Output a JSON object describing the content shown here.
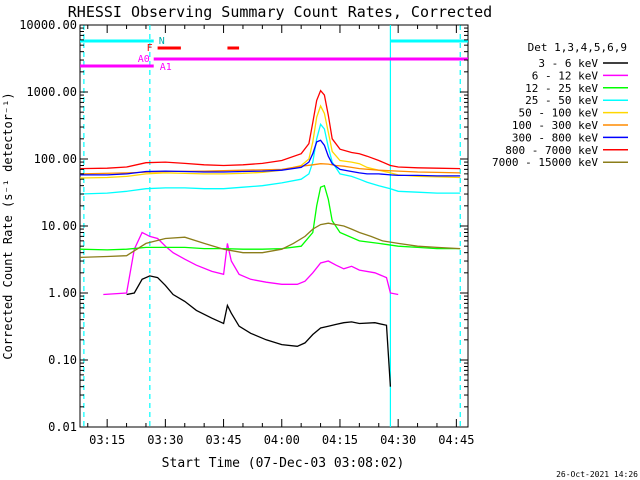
{
  "chart_data": {
    "type": "line",
    "title": "RHESSI Observing Summary Count Rates, Corrected",
    "xlabel": "Start Time (07-Dec-03 03:08:02)",
    "ylabel": "Corrected Count Rate (s⁻¹ detector⁻¹)",
    "yscale": "log",
    "ylim": [
      0.01,
      10000
    ],
    "xlim": [
      "03:08",
      "04:48"
    ],
    "y_ticks": [
      "10000.00",
      "1000.00",
      "100.00",
      "10.00",
      "1.00",
      "0.10",
      "0.01"
    ],
    "x_ticks": [
      "03:15",
      "03:30",
      "03:45",
      "04:00",
      "04:15",
      "04:30",
      "04:45"
    ],
    "timestamp": "26-Oct-2021 14:26",
    "legend_title": "Det 1,3,4,5,6,9",
    "state_bars": {
      "N_label": "N",
      "N_intervals": [
        [
          "03:08",
          "03:27"
        ],
        [
          "04:28",
          "04:48"
        ]
      ],
      "F_label": "F",
      "F_intervals": [
        [
          "03:28",
          "03:34"
        ],
        [
          "03:46",
          "03:49"
        ]
      ],
      "A0_label": "A0",
      "A0_interval": [
        "03:08",
        "03:27"
      ],
      "A1_label": "A1",
      "A1_interval": [
        "03:27",
        "04:48"
      ]
    },
    "night_markers": [
      "03:09",
      "03:26",
      "04:28",
      "04:46"
    ],
    "series": [
      {
        "name": "3 - 6 keV",
        "color": "#000000",
        "x": [
          "03:20",
          "03:22",
          "03:24",
          "03:26",
          "03:28",
          "03:30",
          "03:32",
          "03:35",
          "03:38",
          "03:42",
          "03:45",
          "03:46",
          "03:47",
          "03:49",
          "03:52",
          "03:56",
          "04:00",
          "04:04",
          "04:06",
          "04:08",
          "04:10",
          "04:12",
          "04:14",
          "04:16",
          "04:18",
          "04:20",
          "04:24",
          "04:27",
          "04:28"
        ],
        "values": [
          0.95,
          1.0,
          1.6,
          1.8,
          1.7,
          1.3,
          0.95,
          0.75,
          0.55,
          0.42,
          0.35,
          0.65,
          0.5,
          0.32,
          0.25,
          0.2,
          0.17,
          0.16,
          0.18,
          0.24,
          0.3,
          0.32,
          0.34,
          0.36,
          0.37,
          0.35,
          0.36,
          0.33,
          0.04
        ]
      },
      {
        "name": "6 - 12 keV",
        "color": "#ff00ff",
        "x": [
          "03:14",
          "03:20",
          "03:22",
          "03:24",
          "03:25",
          "03:26",
          "03:28",
          "03:30",
          "03:32",
          "03:35",
          "03:38",
          "03:42",
          "03:45",
          "03:46",
          "03:47",
          "03:49",
          "03:52",
          "03:56",
          "04:00",
          "04:04",
          "04:06",
          "04:08",
          "04:10",
          "04:12",
          "04:14",
          "04:16",
          "04:18",
          "04:20",
          "04:24",
          "04:27",
          "04:28",
          "04:30"
        ],
        "values": [
          0.95,
          1.0,
          4.5,
          8.0,
          7.5,
          7.0,
          6.5,
          5.0,
          4.0,
          3.2,
          2.6,
          2.1,
          1.9,
          5.5,
          3.0,
          1.9,
          1.6,
          1.45,
          1.35,
          1.35,
          1.5,
          2.0,
          2.8,
          3.0,
          2.6,
          2.3,
          2.5,
          2.2,
          2.0,
          1.7,
          1.0,
          0.95
        ]
      },
      {
        "name": "12 - 25 keV",
        "color": "#00ff00",
        "x": [
          "03:08",
          "03:15",
          "03:20",
          "03:25",
          "03:30",
          "03:35",
          "03:40",
          "03:45",
          "03:50",
          "03:55",
          "04:00",
          "04:05",
          "04:08",
          "04:09",
          "04:10",
          "04:11",
          "04:12",
          "04:13",
          "04:15",
          "04:20",
          "04:25",
          "04:30",
          "04:35",
          "04:40",
          "04:46"
        ],
        "values": [
          4.5,
          4.4,
          4.5,
          4.8,
          4.8,
          4.8,
          4.6,
          4.6,
          4.5,
          4.5,
          4.6,
          5.0,
          8.0,
          20,
          38,
          40,
          25,
          12,
          8,
          6,
          5.5,
          5.0,
          4.8,
          4.6,
          4.6
        ]
      },
      {
        "name": "25 - 50 keV",
        "color": "#00ffff",
        "x": [
          "03:08",
          "03:15",
          "03:20",
          "03:25",
          "03:30",
          "03:35",
          "03:40",
          "03:45",
          "03:50",
          "03:55",
          "04:00",
          "04:05",
          "04:07",
          "04:08",
          "04:09",
          "04:10",
          "04:11",
          "04:12",
          "04:13",
          "04:15",
          "04:18",
          "04:20",
          "04:22",
          "04:25",
          "04:28",
          "04:30",
          "04:35",
          "04:40",
          "04:46"
        ],
        "values": [
          30,
          31,
          33,
          36,
          37,
          37,
          36,
          36,
          38,
          40,
          44,
          50,
          60,
          90,
          200,
          330,
          280,
          150,
          90,
          60,
          55,
          50,
          45,
          40,
          36,
          33,
          32,
          31,
          31
        ]
      },
      {
        "name": "50 - 100 keV",
        "color": "#ffd700",
        "x": [
          "03:08",
          "03:15",
          "03:20",
          "03:25",
          "03:30",
          "03:35",
          "03:40",
          "03:45",
          "03:50",
          "03:55",
          "04:00",
          "04:05",
          "04:07",
          "04:08",
          "04:09",
          "04:10",
          "04:11",
          "04:12",
          "04:13",
          "04:15",
          "04:18",
          "04:20",
          "04:22",
          "04:25",
          "04:28",
          "04:30",
          "04:35",
          "04:40",
          "04:46"
        ],
        "values": [
          52,
          53,
          55,
          60,
          62,
          61,
          60,
          60,
          61,
          63,
          68,
          80,
          100,
          180,
          420,
          620,
          480,
          250,
          130,
          95,
          90,
          85,
          75,
          68,
          62,
          58,
          55,
          54,
          53
        ]
      },
      {
        "name": "100 - 300 keV",
        "color": "#ff8c00",
        "x": [
          "03:08",
          "03:20",
          "03:30",
          "03:40",
          "03:50",
          "04:00",
          "04:05",
          "04:08",
          "04:10",
          "04:12",
          "04:14",
          "04:16",
          "04:18",
          "04:20",
          "04:25",
          "04:30",
          "04:35",
          "04:40",
          "04:46"
        ],
        "values": [
          60,
          62,
          65,
          66,
          68,
          70,
          78,
          82,
          85,
          84,
          80,
          78,
          75,
          72,
          68,
          66,
          64,
          63,
          62
        ]
      },
      {
        "name": "300 - 800 keV",
        "color": "#0000ff",
        "x": [
          "03:08",
          "03:15",
          "03:20",
          "03:25",
          "03:30",
          "03:35",
          "03:40",
          "03:45",
          "03:50",
          "03:55",
          "04:00",
          "04:05",
          "04:07",
          "04:08",
          "04:09",
          "04:10",
          "04:11",
          "04:12",
          "04:13",
          "04:15",
          "04:18",
          "04:20",
          "04:22",
          "04:25",
          "04:28",
          "04:30",
          "04:35",
          "04:40",
          "04:46"
        ],
        "values": [
          58,
          58,
          60,
          65,
          66,
          65,
          64,
          64,
          65,
          66,
          68,
          75,
          90,
          120,
          180,
          190,
          160,
          110,
          85,
          70,
          65,
          62,
          60,
          60,
          58,
          57,
          57,
          56,
          56
        ]
      },
      {
        "name": "800 - 7000 keV",
        "color": "#ff0000",
        "x": [
          "03:08",
          "03:15",
          "03:20",
          "03:25",
          "03:30",
          "03:35",
          "03:40",
          "03:45",
          "03:50",
          "03:55",
          "04:00",
          "04:05",
          "04:07",
          "04:08",
          "04:09",
          "04:10",
          "04:11",
          "04:12",
          "04:13",
          "04:15",
          "04:18",
          "04:20",
          "04:22",
          "04:25",
          "04:28",
          "04:30",
          "04:35",
          "04:40",
          "04:46"
        ],
        "values": [
          72,
          73,
          76,
          88,
          90,
          86,
          82,
          80,
          82,
          86,
          95,
          120,
          170,
          350,
          750,
          1050,
          900,
          450,
          200,
          140,
          125,
          120,
          110,
          95,
          80,
          76,
          74,
          73,
          72
        ]
      },
      {
        "name": "7000 - 15000 keV",
        "color": "#8b7d1a",
        "x": [
          "03:08",
          "03:15",
          "03:20",
          "03:25",
          "03:30",
          "03:35",
          "03:40",
          "03:45",
          "03:50",
          "03:55",
          "04:00",
          "04:03",
          "04:06",
          "04:08",
          "04:10",
          "04:12",
          "04:14",
          "04:16",
          "04:18",
          "04:20",
          "04:23",
          "04:26",
          "04:30",
          "04:35",
          "04:40",
          "04:46"
        ],
        "values": [
          3.4,
          3.5,
          3.6,
          5.5,
          6.5,
          6.8,
          5.5,
          4.5,
          4.0,
          4.0,
          4.5,
          5.5,
          7.0,
          9.0,
          10.5,
          11.0,
          10.5,
          10.0,
          9.0,
          8.0,
          7.0,
          6.0,
          5.5,
          5.0,
          4.8,
          4.6
        ]
      }
    ]
  }
}
